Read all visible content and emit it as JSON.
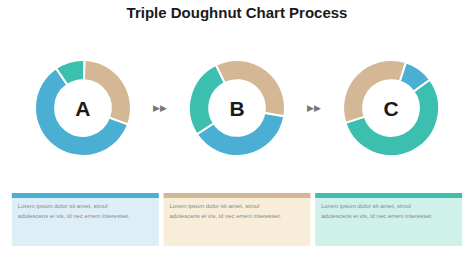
{
  "chart_data": [
    {
      "type": "pie",
      "title": "Triple Doughnut Chart Process",
      "values": [
        60,
        10,
        30
      ],
      "colors": [
        "#4bafd4",
        "#3dbfb0",
        "#d4b896"
      ],
      "annotations": [
        "A",
        "Lorem ipsum dolor sit amet, simul\nadolescens ei vis, id nec errem interesset.",
        "▶▶"
      ]
    },
    {
      "type": "pie",
      "values": [
        38,
        27,
        35
      ],
      "colors": [
        "#4bafd4",
        "#3dbfb0",
        "#d4b896"
      ],
      "annotations": [
        "B",
        "Lorem ipsum dolor sit amet, simul\nadolescens ei vis, id nec errem interesset.",
        "▶▶"
      ]
    },
    {
      "type": "pie",
      "values": [
        10,
        55,
        35
      ],
      "colors": [
        "#4bafd4",
        "#3dbfb0",
        "#d4b896"
      ],
      "annotations": [
        "C",
        "Lorem ipsum dolor sit amet, simul\nadolescens ei vis, id nec errem interesset."
      ]
    }
  ]
}
